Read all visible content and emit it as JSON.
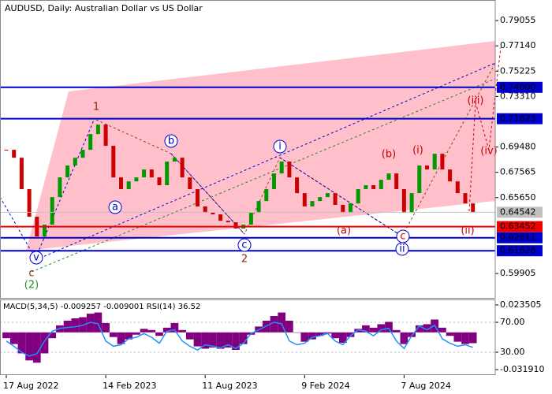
{
  "chart_data": [
    {
      "type": "candles",
      "title": "AUDUSD, Daily:  Australian Dollar vs US Dollar",
      "categories": [
        "17 Aug 2022",
        null,
        null,
        null,
        null,
        null,
        null,
        null,
        null,
        null,
        null,
        null,
        null,
        "14 Feb 2023",
        null,
        null,
        null,
        null,
        null,
        null,
        null,
        null,
        null,
        null,
        null,
        null,
        "11 Aug 2023",
        null,
        null,
        null,
        null,
        null,
        null,
        null,
        null,
        null,
        null,
        null,
        null,
        "9 Feb 2024",
        null,
        null,
        null,
        null,
        null,
        null,
        null,
        null,
        null,
        null,
        null,
        null,
        "7 Aug 2024",
        null,
        null,
        null,
        null,
        null,
        null,
        null,
        null,
        null
      ],
      "values": [
        0.6927,
        0.6867,
        0.6629,
        0.642,
        0.6271,
        0.636,
        0.6569,
        0.6718,
        0.6808,
        0.6867,
        0.6927,
        0.7046,
        0.7118,
        0.6957,
        0.6718,
        0.6629,
        0.6688,
        0.6718,
        0.6778,
        0.6718,
        0.6659,
        0.6838,
        0.6867,
        0.6718,
        0.6629,
        0.6498,
        0.645,
        0.6438,
        0.639,
        0.6378,
        0.6331,
        0.636,
        0.645,
        0.6539,
        0.6629,
        0.6748,
        0.6838,
        0.6718,
        0.6599,
        0.6498,
        0.6539,
        0.6569,
        0.6599,
        0.651,
        0.645,
        0.6521,
        0.6629,
        0.6659,
        0.6629,
        0.67,
        0.6748,
        0.6629,
        0.645,
        0.6599,
        0.6808,
        0.6778,
        0.6897,
        0.6778,
        0.6688,
        0.6599,
        0.6521,
        0.6456
      ],
      "up_color": "#009900",
      "down_color": "#cc0000",
      "ylim": [
        0.5806,
        0.8061
      ],
      "yticks": [
        0.79055,
        {
          "value": 0.7714,
          "label": "0.77140"
        },
        0.75225,
        {
          "value": 0.7331,
          "label": "0.73310"
        },
        {
          "value": 0.6948,
          "label": "0.69480"
        },
        0.67565,
        {
          "value": 0.6565,
          "label": "0.65650"
        },
        0.59905
      ],
      "levels": [
        {
          "value": 0.74,
          "label": "0.74000",
          "color": "#0000cc"
        },
        {
          "value": 0.71623,
          "label": "0.71623",
          "color": "#0000cc"
        },
        {
          "value": 0.64542,
          "label": "0.64542",
          "color": "#c0c0c0"
        },
        {
          "value": 0.63452,
          "label": "0.63452",
          "color": "#ee0000"
        },
        {
          "value": 0.62611,
          "label": "0.62611",
          "color": "#0000cc"
        },
        {
          "value": 0.61628,
          "label": "0.61628",
          "color": "#0000cc"
        }
      ],
      "annotations": [
        "1",
        "(2)",
        "c",
        "v",
        "a",
        "b",
        "c",
        "2",
        "i",
        "(a)",
        "(b)",
        "(i)",
        "c",
        "ii",
        "(ii)",
        "(iii)",
        "(iv)"
      ]
    },
    {
      "type": "macd",
      "title": "MACD(5,34,5) -0.009257 -0.009001 RSI(14) 36.52",
      "ylim": [
        -0.0366,
        0.0282
      ],
      "yticks": [
        0.023505,
        {
          "value": -0.03191,
          "label": "-0.031910"
        }
      ],
      "y2lim": [
        -0.5,
        100.5
      ],
      "y2ticks": [
        {
          "value": 70,
          "label": "70.00"
        },
        {
          "value": 30,
          "label": "30.00"
        }
      ],
      "series": [
        {
          "name": "MACD",
          "color": "#800080",
          "values": [
            -0.005,
            -0.01,
            -0.018,
            -0.024,
            -0.026,
            -0.018,
            -0.005,
            0.006,
            0.01,
            0.012,
            0.013,
            0.016,
            0.017,
            0.008,
            -0.004,
            -0.01,
            -0.006,
            -0.002,
            0.003,
            0.002,
            -0.003,
            0.004,
            0.008,
            0.002,
            -0.006,
            -0.012,
            -0.014,
            -0.013,
            -0.014,
            -0.013,
            -0.015,
            -0.01,
            -0.002,
            0.005,
            0.01,
            0.014,
            0.017,
            0.01,
            0.0,
            -0.008,
            -0.006,
            -0.003,
            -0.001,
            -0.005,
            -0.009,
            -0.004,
            0.003,
            0.006,
            0.004,
            0.007,
            0.009,
            0.002,
            -0.01,
            -0.004,
            0.006,
            0.007,
            0.011,
            0.004,
            -0.003,
            -0.008,
            -0.01,
            -0.009257
          ]
        },
        {
          "name": "RSI",
          "color": "#1e90ff",
          "axis": "y2",
          "values": [
            45,
            38,
            30,
            25,
            28,
            45,
            58,
            62,
            63,
            64,
            66,
            70,
            68,
            45,
            38,
            40,
            48,
            50,
            55,
            50,
            42,
            58,
            60,
            45,
            38,
            33,
            40,
            38,
            36,
            40,
            35,
            42,
            55,
            60,
            65,
            70,
            68,
            45,
            40,
            42,
            50,
            52,
            55,
            45,
            40,
            52,
            60,
            58,
            52,
            60,
            62,
            45,
            35,
            52,
            65,
            60,
            66,
            48,
            42,
            38,
            40,
            36.52
          ]
        }
      ]
    }
  ]
}
